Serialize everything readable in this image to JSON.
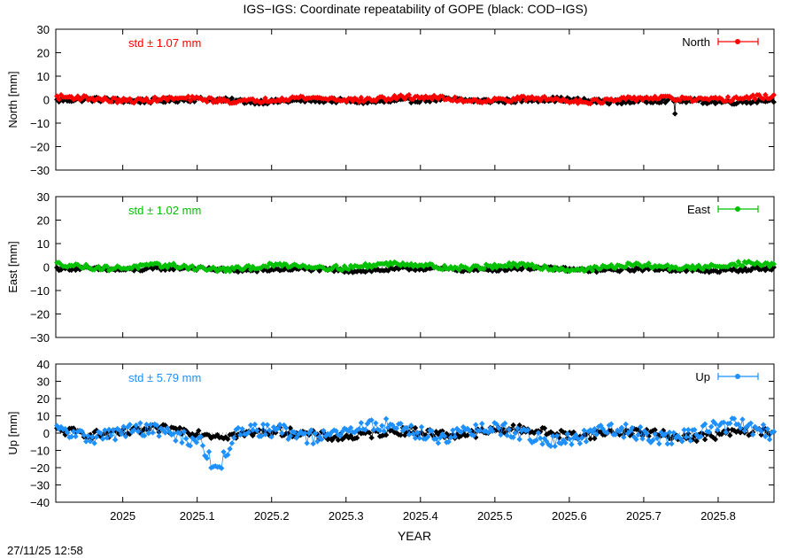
{
  "title": "IGS−IGS: Coordinate repeatability of GOPE (black: COD−IGS)",
  "timestamp": "27/11/25 12:58",
  "colors": {
    "north": "#ff0000",
    "east": "#00c000",
    "up": "#1e90ff",
    "reference": "#000000"
  },
  "chart_data": [
    {
      "type": "scatter",
      "panel": "north",
      "ylabel": "North [mm]",
      "ylim": [
        -30,
        30
      ],
      "yticks": [
        "30",
        "20",
        "10",
        "0",
        "−10",
        "−20",
        "−30"
      ],
      "xlim": [
        2024.91,
        2025.875
      ],
      "std_label": "std ± 1.07 mm",
      "legend": "North",
      "legend_position": "top-right",
      "series": [
        {
          "name": "North",
          "color": "#ff0000",
          "base": 0.2,
          "noise": 1.0,
          "wave": 0.6
        },
        {
          "name": "COD−IGS",
          "color": "#000000",
          "base": -0.4,
          "noise": 1.0,
          "wave": 0.4,
          "outlier": {
            "x": 2025.742,
            "y": -6
          }
        }
      ]
    },
    {
      "type": "scatter",
      "panel": "east",
      "ylabel": "East [mm]",
      "ylim": [
        -30,
        30
      ],
      "yticks": [
        "30",
        "20",
        "10",
        "0",
        "−10",
        "−20",
        "−30"
      ],
      "xlim": [
        2024.91,
        2025.875
      ],
      "std_label": "std ± 1.02 mm",
      "legend": "East",
      "legend_position": "top-right",
      "series": [
        {
          "name": "East",
          "color": "#00c000",
          "base": 0.2,
          "noise": 1.0,
          "wave": 0.8
        },
        {
          "name": "COD−IGS",
          "color": "#000000",
          "base": -1.0,
          "noise": 0.8,
          "wave": 0.4
        }
      ]
    },
    {
      "type": "scatter",
      "panel": "up",
      "ylabel": "Up [mm]",
      "ylim": [
        -40,
        40
      ],
      "yticks": [
        "40",
        "30",
        "20",
        "10",
        "0",
        "−10",
        "−20",
        "−30",
        "−40"
      ],
      "xlim": [
        2024.91,
        2025.875
      ],
      "std_label": "std ± 5.79 mm",
      "legend": "Up",
      "legend_position": "top-right",
      "series": [
        {
          "name": "Up",
          "color": "#1e90ff",
          "base": 0.0,
          "noise": 4.0,
          "wave": 3.0,
          "dip": {
            "from": 2025.118,
            "to": 2025.135,
            "y": -20
          }
        },
        {
          "name": "COD−IGS",
          "color": "#000000",
          "base": 0.0,
          "noise": 2.5,
          "wave": 1.5
        }
      ]
    }
  ],
  "xaxis": {
    "label": "YEAR",
    "ticks": [
      {
        "value": 2025.0,
        "label": "2025"
      },
      {
        "value": 2025.1,
        "label": "2025.1"
      },
      {
        "value": 2025.2,
        "label": "2025.2"
      },
      {
        "value": 2025.3,
        "label": "2025.3"
      },
      {
        "value": 2025.4,
        "label": "2025.4"
      },
      {
        "value": 2025.5,
        "label": "2025.5"
      },
      {
        "value": 2025.6,
        "label": "2025.6"
      },
      {
        "value": 2025.7,
        "label": "2025.7"
      },
      {
        "value": 2025.8,
        "label": "2025.8"
      }
    ]
  }
}
